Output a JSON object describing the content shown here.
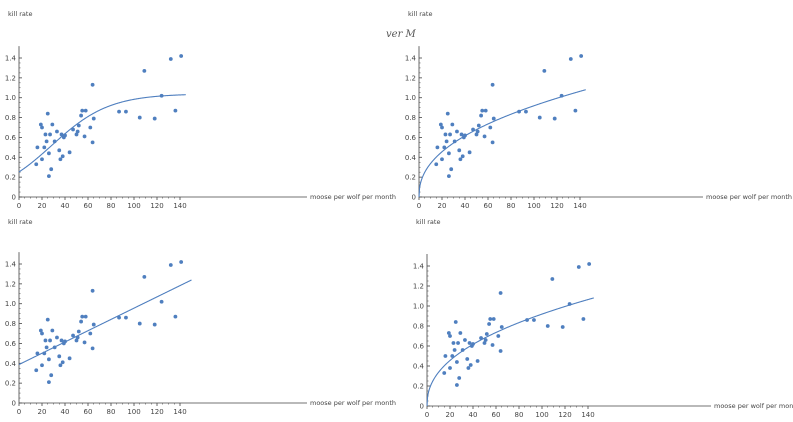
{
  "stray_text": "ver M",
  "colors": {
    "series": "#4f7fbf",
    "axis": "#444444",
    "text": "#444444"
  },
  "chart_data": [
    {
      "type": "scatter",
      "ylabel": "kill rate",
      "xlabel": "moose per wolf per month",
      "xlim": [
        0,
        150
      ],
      "ylim": [
        0,
        1.5
      ],
      "xticks": [
        0,
        20,
        40,
        60,
        80,
        100,
        120,
        140
      ],
      "yticks": [
        0,
        0.2,
        0.4,
        0.6,
        0.8,
        1.0,
        1.2,
        1.4
      ],
      "grid": false,
      "points": [
        [
          15,
          0.33
        ],
        [
          16,
          0.5
        ],
        [
          19,
          0.73
        ],
        [
          20,
          0.7
        ],
        [
          20,
          0.38
        ],
        [
          22,
          0.5
        ],
        [
          23,
          0.63
        ],
        [
          24,
          0.56
        ],
        [
          25,
          0.84
        ],
        [
          26,
          0.21
        ],
        [
          26,
          0.44
        ],
        [
          27,
          0.63
        ],
        [
          28,
          0.28
        ],
        [
          29,
          0.73
        ],
        [
          31,
          0.56
        ],
        [
          33,
          0.66
        ],
        [
          35,
          0.47
        ],
        [
          36,
          0.38
        ],
        [
          37,
          0.63
        ],
        [
          38,
          0.41
        ],
        [
          39,
          0.6
        ],
        [
          40,
          0.62
        ],
        [
          44,
          0.45
        ],
        [
          47,
          0.68
        ],
        [
          50,
          0.63
        ],
        [
          51,
          0.66
        ],
        [
          52,
          0.72
        ],
        [
          54,
          0.82
        ],
        [
          55,
          0.87
        ],
        [
          57,
          0.61
        ],
        [
          58,
          0.87
        ],
        [
          62,
          0.7
        ],
        [
          64,
          0.55
        ],
        [
          64,
          1.13
        ],
        [
          65,
          0.79
        ],
        [
          87,
          0.86
        ],
        [
          93,
          0.86
        ],
        [
          105,
          0.8
        ],
        [
          109,
          1.27
        ],
        [
          118,
          0.79
        ],
        [
          124,
          1.02
        ],
        [
          132,
          1.39
        ],
        [
          136,
          0.87
        ],
        [
          141,
          1.42
        ]
      ],
      "fit": {
        "model": "logistic",
        "x_range": [
          0,
          145
        ]
      }
    },
    {
      "type": "scatter",
      "ylabel": "kill rate",
      "xlabel": "moose per wolf per month",
      "xlim": [
        0,
        150
      ],
      "ylim": [
        0,
        1.5
      ],
      "xticks": [
        0,
        20,
        40,
        60,
        80,
        100,
        120,
        140
      ],
      "yticks": [
        0,
        0.2,
        0.4,
        0.6,
        0.8,
        1.0,
        1.2,
        1.4
      ],
      "grid": false,
      "points": [
        [
          15,
          0.33
        ],
        [
          16,
          0.5
        ],
        [
          19,
          0.73
        ],
        [
          20,
          0.7
        ],
        [
          20,
          0.38
        ],
        [
          22,
          0.5
        ],
        [
          23,
          0.63
        ],
        [
          24,
          0.56
        ],
        [
          25,
          0.84
        ],
        [
          26,
          0.21
        ],
        [
          26,
          0.44
        ],
        [
          27,
          0.63
        ],
        [
          28,
          0.28
        ],
        [
          29,
          0.73
        ],
        [
          31,
          0.56
        ],
        [
          33,
          0.66
        ],
        [
          35,
          0.47
        ],
        [
          36,
          0.38
        ],
        [
          37,
          0.63
        ],
        [
          38,
          0.41
        ],
        [
          39,
          0.6
        ],
        [
          40,
          0.62
        ],
        [
          44,
          0.45
        ],
        [
          47,
          0.68
        ],
        [
          50,
          0.63
        ],
        [
          51,
          0.66
        ],
        [
          52,
          0.72
        ],
        [
          54,
          0.82
        ],
        [
          55,
          0.87
        ],
        [
          57,
          0.61
        ],
        [
          58,
          0.87
        ],
        [
          62,
          0.7
        ],
        [
          64,
          0.55
        ],
        [
          64,
          1.13
        ],
        [
          65,
          0.79
        ],
        [
          87,
          0.86
        ],
        [
          93,
          0.86
        ],
        [
          105,
          0.8
        ],
        [
          109,
          1.27
        ],
        [
          118,
          0.79
        ],
        [
          124,
          1.02
        ],
        [
          132,
          1.39
        ],
        [
          136,
          0.87
        ],
        [
          141,
          1.42
        ]
      ],
      "fit": {
        "model": "power",
        "x_range": [
          0,
          145
        ]
      }
    },
    {
      "type": "scatter",
      "ylabel": "kill rate",
      "xlabel": "moose per wolf per month",
      "xlim": [
        0,
        150
      ],
      "ylim": [
        0,
        1.5
      ],
      "xticks": [
        0,
        20,
        40,
        60,
        80,
        100,
        120,
        140
      ],
      "yticks": [
        0,
        0.2,
        0.4,
        0.6,
        0.8,
        1.0,
        1.2,
        1.4
      ],
      "grid": false,
      "points": [
        [
          15,
          0.33
        ],
        [
          16,
          0.5
        ],
        [
          19,
          0.73
        ],
        [
          20,
          0.7
        ],
        [
          20,
          0.38
        ],
        [
          22,
          0.5
        ],
        [
          23,
          0.63
        ],
        [
          24,
          0.56
        ],
        [
          25,
          0.84
        ],
        [
          26,
          0.21
        ],
        [
          26,
          0.44
        ],
        [
          27,
          0.63
        ],
        [
          28,
          0.28
        ],
        [
          29,
          0.73
        ],
        [
          31,
          0.56
        ],
        [
          33,
          0.66
        ],
        [
          35,
          0.47
        ],
        [
          36,
          0.38
        ],
        [
          37,
          0.63
        ],
        [
          38,
          0.41
        ],
        [
          39,
          0.6
        ],
        [
          40,
          0.62
        ],
        [
          44,
          0.45
        ],
        [
          47,
          0.68
        ],
        [
          50,
          0.63
        ],
        [
          51,
          0.66
        ],
        [
          52,
          0.72
        ],
        [
          54,
          0.82
        ],
        [
          55,
          0.87
        ],
        [
          57,
          0.61
        ],
        [
          58,
          0.87
        ],
        [
          62,
          0.7
        ],
        [
          64,
          0.55
        ],
        [
          64,
          1.13
        ],
        [
          65,
          0.79
        ],
        [
          87,
          0.86
        ],
        [
          93,
          0.86
        ],
        [
          105,
          0.8
        ],
        [
          109,
          1.27
        ],
        [
          118,
          0.79
        ],
        [
          124,
          1.02
        ],
        [
          132,
          1.39
        ],
        [
          136,
          0.87
        ],
        [
          141,
          1.42
        ]
      ],
      "fit": {
        "model": "linear",
        "x_range": [
          0,
          150
        ]
      }
    },
    {
      "type": "scatter",
      "ylabel": "kill rate",
      "xlabel": "moose per wolf per month",
      "xlim": [
        0,
        150
      ],
      "ylim": [
        0,
        1.5
      ],
      "xticks": [
        0,
        20,
        40,
        60,
        80,
        100,
        120,
        140
      ],
      "yticks": [
        0,
        0.2,
        0.4,
        0.6,
        0.8,
        1.0,
        1.2,
        1.4
      ],
      "grid": false,
      "points": [
        [
          15,
          0.33
        ],
        [
          16,
          0.5
        ],
        [
          19,
          0.73
        ],
        [
          20,
          0.7
        ],
        [
          20,
          0.38
        ],
        [
          22,
          0.5
        ],
        [
          23,
          0.63
        ],
        [
          24,
          0.56
        ],
        [
          25,
          0.84
        ],
        [
          26,
          0.21
        ],
        [
          26,
          0.44
        ],
        [
          27,
          0.63
        ],
        [
          28,
          0.28
        ],
        [
          29,
          0.73
        ],
        [
          31,
          0.56
        ],
        [
          33,
          0.66
        ],
        [
          35,
          0.47
        ],
        [
          36,
          0.38
        ],
        [
          37,
          0.63
        ],
        [
          38,
          0.41
        ],
        [
          39,
          0.6
        ],
        [
          40,
          0.62
        ],
        [
          44,
          0.45
        ],
        [
          47,
          0.68
        ],
        [
          50,
          0.63
        ],
        [
          51,
          0.66
        ],
        [
          52,
          0.72
        ],
        [
          54,
          0.82
        ],
        [
          55,
          0.87
        ],
        [
          57,
          0.61
        ],
        [
          58,
          0.87
        ],
        [
          62,
          0.7
        ],
        [
          64,
          0.55
        ],
        [
          64,
          1.13
        ],
        [
          65,
          0.79
        ],
        [
          87,
          0.86
        ],
        [
          93,
          0.86
        ],
        [
          105,
          0.8
        ],
        [
          109,
          1.27
        ],
        [
          118,
          0.79
        ],
        [
          124,
          1.02
        ],
        [
          132,
          1.39
        ],
        [
          136,
          0.87
        ],
        [
          141,
          1.42
        ]
      ],
      "fit": {
        "model": "power",
        "x_range": [
          0,
          145
        ]
      }
    }
  ]
}
